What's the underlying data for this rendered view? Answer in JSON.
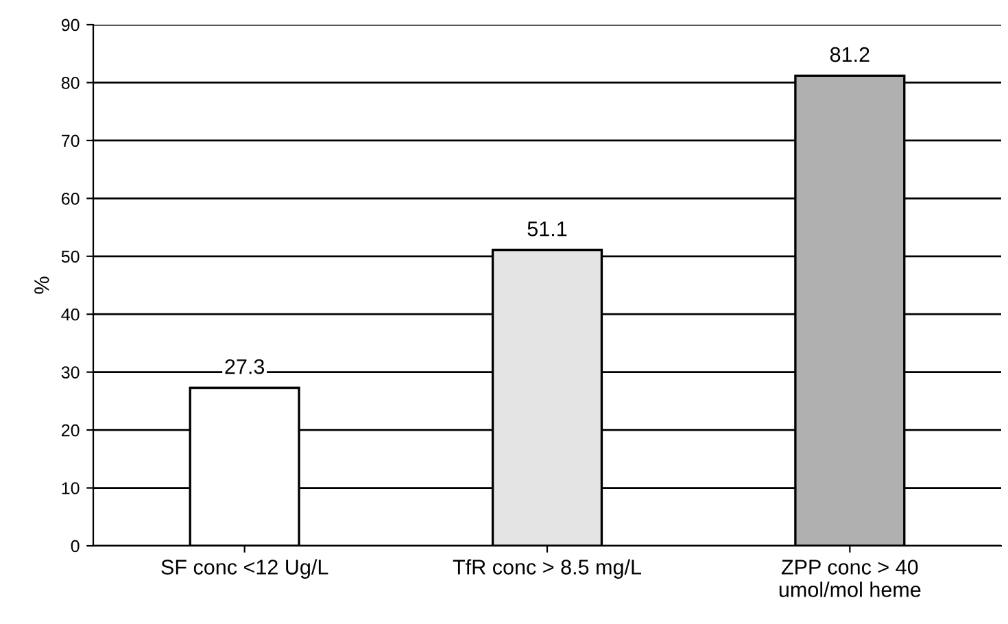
{
  "chart_data": {
    "type": "bar",
    "ylabel": "%",
    "categories": [
      "SF conc <12 Ug/L",
      "TfR conc > 8.5 mg/L",
      "ZPP conc > 40\numol/mol heme"
    ],
    "values": [
      27.3,
      51.1,
      81.2
    ],
    "colors": [
      "#ffffff",
      "#e4e4e4",
      "#b0b0b0"
    ],
    "ylim": [
      0,
      90
    ],
    "yticks": [
      0,
      10,
      20,
      30,
      40,
      50,
      60,
      70,
      80,
      90
    ],
    "grid": "y",
    "data_labels": true
  }
}
